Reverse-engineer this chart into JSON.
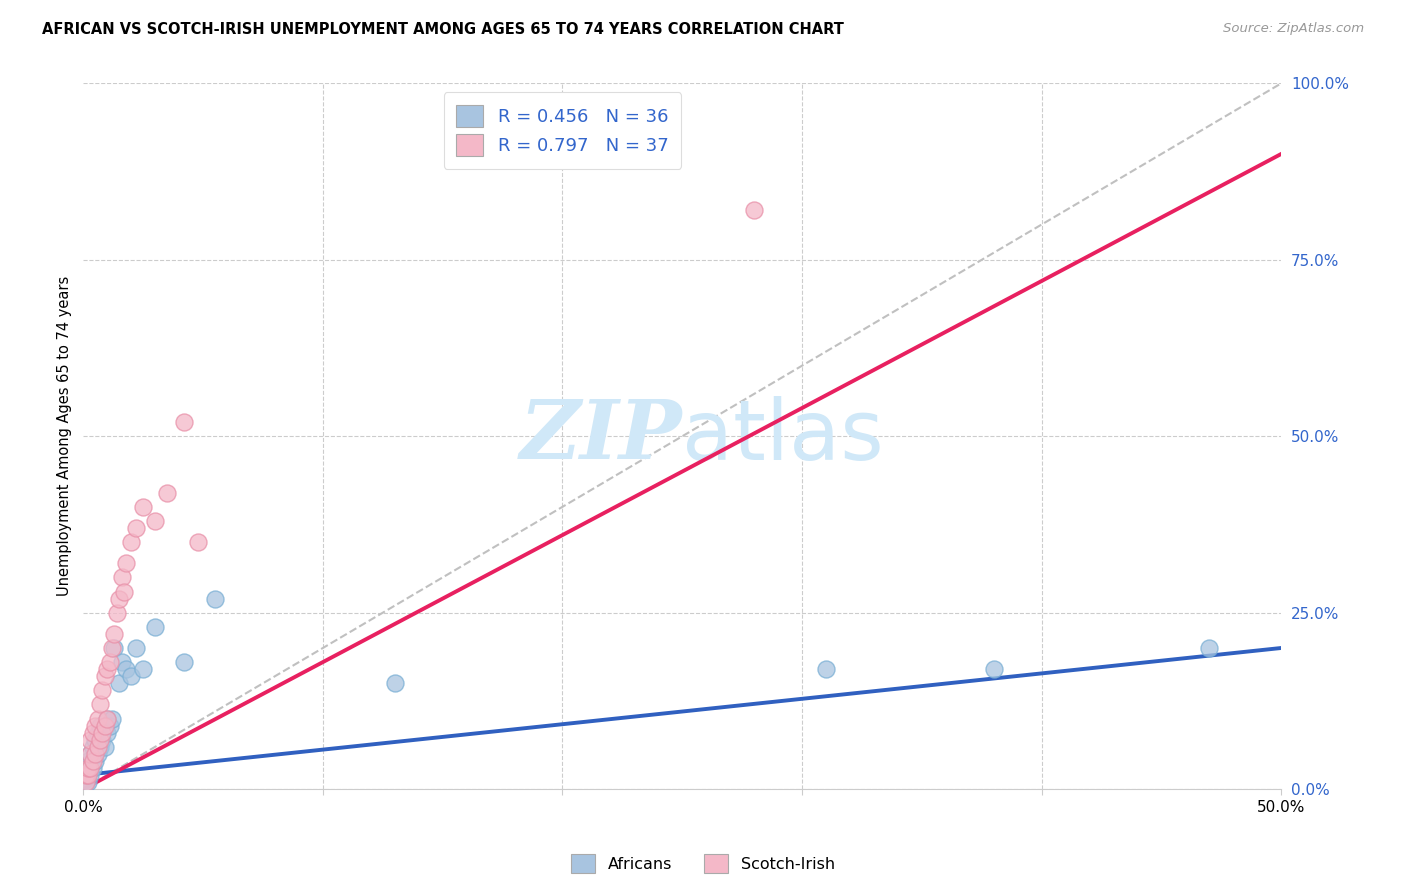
{
  "title": "AFRICAN VS SCOTCH-IRISH UNEMPLOYMENT AMONG AGES 65 TO 74 YEARS CORRELATION CHART",
  "source": "Source: ZipAtlas.com",
  "ylabel": "Unemployment Among Ages 65 to 74 years",
  "xlim": [
    0.0,
    0.5
  ],
  "ylim": [
    0.0,
    1.0
  ],
  "xtick_positions": [
    0.0,
    0.1,
    0.2,
    0.3,
    0.4,
    0.5
  ],
  "xtick_labels": [
    "0.0%",
    "",
    "",
    "",
    "",
    "50.0%"
  ],
  "ytick_positions_right": [
    0.0,
    0.25,
    0.5,
    0.75,
    1.0
  ],
  "ytick_labels_right": [
    "0.0%",
    "25.0%",
    "50.0%",
    "75.0%",
    "100.0%"
  ],
  "african_R": 0.456,
  "african_N": 36,
  "scotch_R": 0.797,
  "scotch_N": 37,
  "african_color": "#a8c4e0",
  "african_edge_color": "#7aafd4",
  "scotch_color": "#f4b8c8",
  "scotch_edge_color": "#e890a8",
  "african_line_color": "#3060c0",
  "scotch_line_color": "#e82060",
  "diagonal_color": "#c0c0c0",
  "legend_text_color": "#3366cc",
  "watermark_color": "#d0e8f8",
  "african_x": [
    0.001,
    0.001,
    0.002,
    0.002,
    0.002,
    0.003,
    0.003,
    0.003,
    0.004,
    0.004,
    0.005,
    0.005,
    0.006,
    0.006,
    0.007,
    0.007,
    0.008,
    0.009,
    0.01,
    0.01,
    0.011,
    0.012,
    0.013,
    0.015,
    0.016,
    0.018,
    0.02,
    0.022,
    0.025,
    0.03,
    0.042,
    0.055,
    0.13,
    0.31,
    0.38,
    0.47
  ],
  "african_y": [
    0.01,
    0.02,
    0.01,
    0.03,
    0.04,
    0.02,
    0.03,
    0.05,
    0.03,
    0.06,
    0.04,
    0.07,
    0.05,
    0.08,
    0.06,
    0.09,
    0.07,
    0.06,
    0.08,
    0.1,
    0.09,
    0.1,
    0.2,
    0.15,
    0.18,
    0.17,
    0.16,
    0.2,
    0.17,
    0.23,
    0.18,
    0.27,
    0.15,
    0.17,
    0.17,
    0.2
  ],
  "scotch_x": [
    0.001,
    0.001,
    0.002,
    0.002,
    0.003,
    0.003,
    0.003,
    0.004,
    0.004,
    0.005,
    0.005,
    0.006,
    0.006,
    0.007,
    0.007,
    0.008,
    0.008,
    0.009,
    0.009,
    0.01,
    0.01,
    0.011,
    0.012,
    0.013,
    0.014,
    0.015,
    0.016,
    0.017,
    0.018,
    0.02,
    0.022,
    0.025,
    0.03,
    0.035,
    0.042,
    0.048,
    0.28
  ],
  "scotch_y": [
    0.01,
    0.02,
    0.02,
    0.03,
    0.03,
    0.05,
    0.07,
    0.04,
    0.08,
    0.05,
    0.09,
    0.06,
    0.1,
    0.07,
    0.12,
    0.08,
    0.14,
    0.09,
    0.16,
    0.1,
    0.17,
    0.18,
    0.2,
    0.22,
    0.25,
    0.27,
    0.3,
    0.28,
    0.32,
    0.35,
    0.37,
    0.4,
    0.38,
    0.42,
    0.52,
    0.35,
    0.82
  ],
  "background_color": "#ffffff"
}
